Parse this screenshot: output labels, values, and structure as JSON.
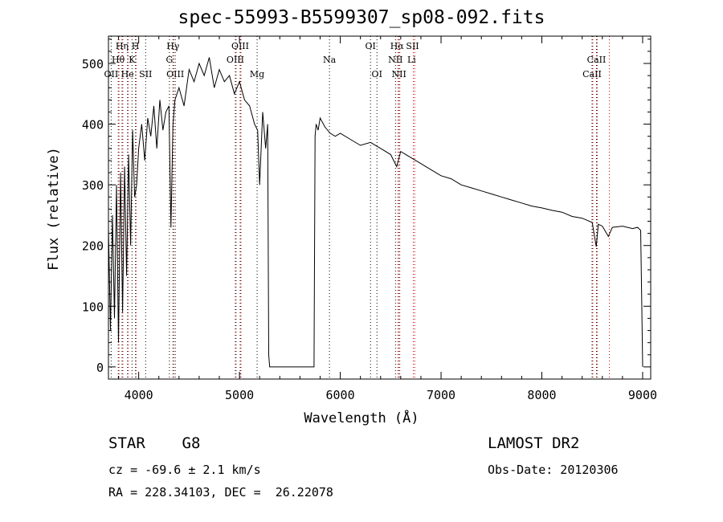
{
  "chart_data": {
    "type": "line",
    "title": "spec-55993-B5599307_sp08-092.fits",
    "xlabel": "Wavelength (Å)",
    "ylabel": "Flux (relative)",
    "xlim": [
      3700,
      9080
    ],
    "ylim": [
      -20,
      545
    ],
    "xticks": [
      4000,
      5000,
      6000,
      7000,
      8000,
      9000
    ],
    "yticks": [
      0,
      100,
      200,
      300,
      400,
      500
    ],
    "grid": false,
    "series": [
      {
        "x": [
          3700,
          3720,
          3740,
          3760,
          3780,
          3800,
          3820,
          3840,
          3860,
          3880,
          3900,
          3920,
          3940,
          3960,
          3980,
          4000,
          4030,
          4060,
          4090,
          4120,
          4150,
          4180,
          4210,
          4240,
          4270,
          4300,
          4320,
          4340,
          4360,
          4400,
          4450,
          4500,
          4550,
          4600,
          4650,
          4700,
          4750,
          4800,
          4850,
          4900,
          4950,
          5000,
          5050,
          5100,
          5150,
          5180,
          5200,
          5230,
          5260,
          5280,
          5290,
          5300,
          5310,
          5500,
          5740,
          5750,
          5760,
          5780,
          5800,
          5850,
          5900,
          5950,
          6000,
          6100,
          6200,
          6300,
          6400,
          6500,
          6560,
          6600,
          6700,
          6800,
          6900,
          7000,
          7100,
          7200,
          7300,
          7400,
          7500,
          7600,
          7700,
          7800,
          7900,
          8000,
          8100,
          8200,
          8300,
          8400,
          8500,
          8540,
          8560,
          8600,
          8660,
          8700,
          8800,
          8900,
          8950,
          8980,
          8990,
          9000
        ],
        "y": [
          230,
          60,
          250,
          80,
          300,
          40,
          320,
          90,
          330,
          150,
          350,
          200,
          390,
          280,
          300,
          360,
          400,
          340,
          410,
          380,
          430,
          360,
          440,
          390,
          420,
          430,
          230,
          400,
          440,
          460,
          430,
          490,
          470,
          500,
          480,
          510,
          460,
          490,
          470,
          480,
          450,
          470,
          440,
          430,
          400,
          390,
          300,
          420,
          360,
          400,
          20,
          0,
          0,
          0,
          0,
          380,
          400,
          390,
          410,
          395,
          385,
          380,
          385,
          375,
          365,
          370,
          360,
          350,
          330,
          355,
          345,
          335,
          325,
          315,
          310,
          300,
          295,
          290,
          285,
          280,
          275,
          270,
          265,
          262,
          258,
          255,
          248,
          245,
          238,
          198,
          235,
          232,
          215,
          230,
          232,
          228,
          230,
          225,
          120,
          0
        ]
      }
    ],
    "line_annotations": [
      {
        "text": "Hη",
        "x": 3835,
        "row": 0
      },
      {
        "text": "H",
        "x": 3968,
        "row": 0
      },
      {
        "text": "Hγ",
        "x": 4340,
        "row": 0
      },
      {
        "text": "OIII",
        "x": 5007,
        "row": 0
      },
      {
        "text": "OI",
        "x": 6300,
        "row": 0
      },
      {
        "text": "Hα",
        "x": 6563,
        "row": 0
      },
      {
        "text": "SII",
        "x": 6717,
        "row": 0
      },
      {
        "text": "Hθ",
        "x": 3797,
        "row": 1
      },
      {
        "text": "K",
        "x": 3934,
        "row": 1
      },
      {
        "text": "G",
        "x": 4305,
        "row": 1
      },
      {
        "text": "OIII",
        "x": 4959,
        "row": 1
      },
      {
        "text": "Na",
        "x": 5893,
        "row": 1
      },
      {
        "text": "NII",
        "x": 6548,
        "row": 1
      },
      {
        "text": "Li",
        "x": 6708,
        "row": 1
      },
      {
        "text": "CaII",
        "x": 8542,
        "row": 1
      },
      {
        "text": "OII",
        "x": 3727,
        "row": 2
      },
      {
        "text": "He",
        "x": 3889,
        "row": 2
      },
      {
        "text": "SII",
        "x": 4069,
        "row": 2
      },
      {
        "text": "OIII",
        "x": 4363,
        "row": 2
      },
      {
        "text": "Mg",
        "x": 5175,
        "row": 2
      },
      {
        "text": "OI",
        "x": 6364,
        "row": 2
      },
      {
        "text": "NII",
        "x": 6583,
        "row": 2
      },
      {
        "text": "CaII",
        "x": 8498,
        "row": 2
      }
    ],
    "line_markers_black": [
      3727,
      3797,
      3835,
      3889,
      3934,
      3968,
      4069,
      4305,
      4340,
      4363,
      4959,
      5007,
      5175,
      5893,
      6300,
      6364,
      6548,
      6583,
      8498,
      8542
    ],
    "line_markers_red": [
      3797,
      3835,
      3889,
      3968,
      4340,
      4959,
      5007,
      6563,
      6583,
      6717,
      6731,
      8498,
      8542,
      8662
    ],
    "marker_colors": {
      "black": "#000000",
      "red": "#cc0000"
    }
  },
  "info": {
    "object_line": "STAR    G8",
    "cz_line": "cz = -69.6 ± 2.1 km/s",
    "radec_line": "RA = 228.34103, DEC =  26.22078",
    "survey": "LAMOST DR2",
    "obs_date": "Obs-Date: 20120306"
  }
}
